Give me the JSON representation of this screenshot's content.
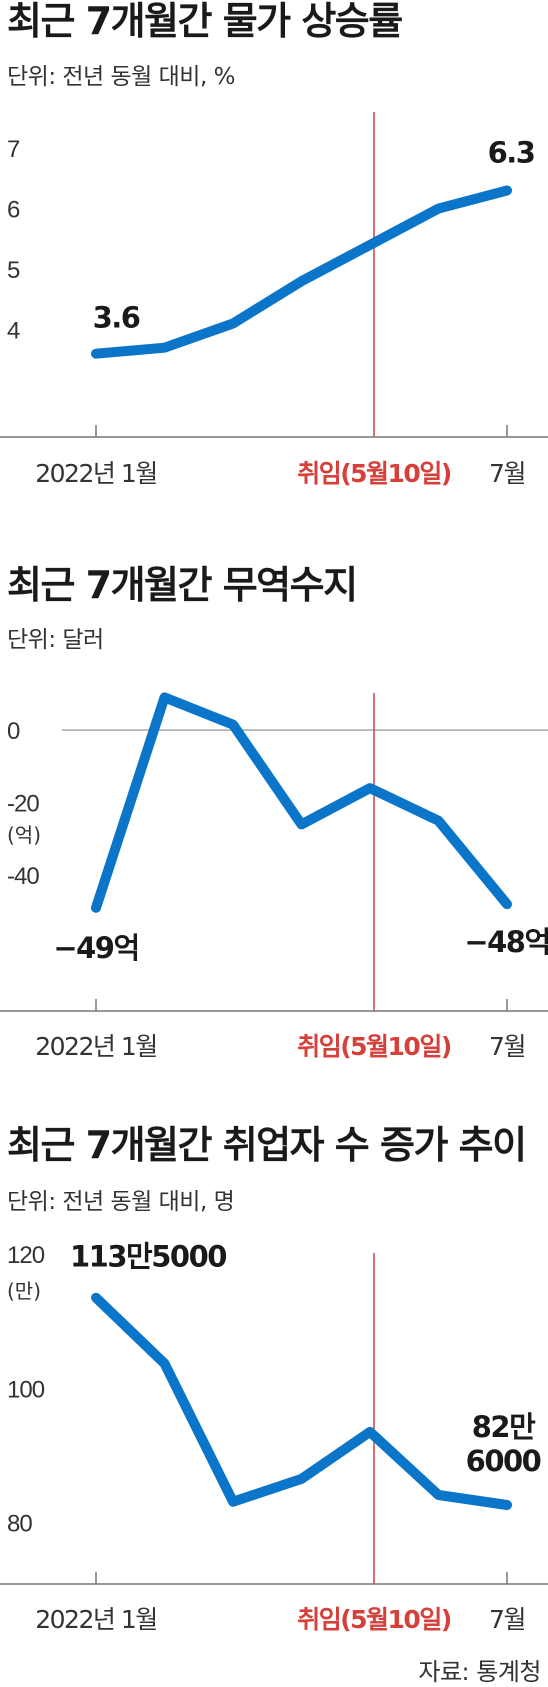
{
  "source": "자료: 통계청",
  "colors": {
    "line": "#0a75c9",
    "event": "#d6403a",
    "axis": "#777777",
    "text": "#222222"
  },
  "chart_data": [
    {
      "type": "line",
      "title": "최근 7개월간 물가 상승률",
      "subtitle": "단위: 전년 동월 대비, %",
      "x": [
        "2022-01",
        "2022-02",
        "2022-03",
        "2022-04",
        "2022-05",
        "2022-06",
        "2022-07"
      ],
      "x_tick_labels": [
        {
          "x": "2022-01",
          "label": "2022년 1월"
        },
        {
          "x": "2022-07",
          "label": "7월"
        }
      ],
      "event": {
        "x": "2022-05-10",
        "label": "취임(5월10일)"
      },
      "values": [
        3.6,
        3.7,
        4.1,
        4.8,
        5.4,
        6.0,
        6.3
      ],
      "y_ticks": [
        {
          "value": 4,
          "label": "4"
        },
        {
          "value": 5,
          "label": "5"
        },
        {
          "value": 6,
          "label": "6"
        },
        {
          "value": 7,
          "label": "7"
        }
      ],
      "y_unit_label": "",
      "ylim": [
        3.0,
        7.3
      ],
      "zero_line": false,
      "data_labels": [
        {
          "index": 0,
          "text": "3.6"
        },
        {
          "index": 6,
          "text": "6.3"
        }
      ],
      "grid": false
    },
    {
      "type": "line",
      "title": "최근 7개월간 무역수지",
      "subtitle": "단위: 달러",
      "x": [
        "2022-01",
        "2022-02",
        "2022-03",
        "2022-04",
        "2022-05",
        "2022-06",
        "2022-07"
      ],
      "x_tick_labels": [
        {
          "x": "2022-01",
          "label": "2022년 1월"
        },
        {
          "x": "2022-07",
          "label": "7월"
        }
      ],
      "event": {
        "x": "2022-05-10",
        "label": "취임(5월10일)"
      },
      "values": [
        -49,
        9,
        1.5,
        -26,
        -16,
        -25,
        -48
      ],
      "y_ticks": [
        {
          "value": 0,
          "label": "0"
        },
        {
          "value": -20,
          "label": "-20"
        },
        {
          "value": -40,
          "label": "-40"
        }
      ],
      "y_unit_label": "(억)",
      "ylim": [
        -62,
        16
      ],
      "zero_line": true,
      "data_labels": [
        {
          "index": 0,
          "text": "−49억"
        },
        {
          "index": 6,
          "text": "−48억"
        }
      ],
      "grid": false
    },
    {
      "type": "line",
      "title": "최근 7개월간 취업자 수 증가 추이",
      "subtitle": "단위: 전년 동월 대비, 명",
      "x": [
        "2022-01",
        "2022-02",
        "2022-03",
        "2022-04",
        "2022-05",
        "2022-06",
        "2022-07"
      ],
      "x_tick_labels": [
        {
          "x": "2022-01",
          "label": "2022년 1월"
        },
        {
          "x": "2022-07",
          "label": "7월"
        }
      ],
      "event": {
        "x": "2022-05-10",
        "label": "취임(5월10일)"
      },
      "values": [
        113.5,
        103.7,
        83.1,
        86.5,
        93.5,
        84.1,
        82.6
      ],
      "y_ticks": [
        {
          "value": 120,
          "label": "120"
        },
        {
          "value": 100,
          "label": "100"
        },
        {
          "value": 80,
          "label": "80"
        }
      ],
      "y_unit_label": "(만)",
      "ylim": [
        75,
        123
      ],
      "zero_line": false,
      "data_labels": [
        {
          "index": 0,
          "text": "113만5000"
        },
        {
          "index": 6,
          "text": [
            "82만",
            "6000"
          ]
        }
      ],
      "grid": false
    }
  ]
}
